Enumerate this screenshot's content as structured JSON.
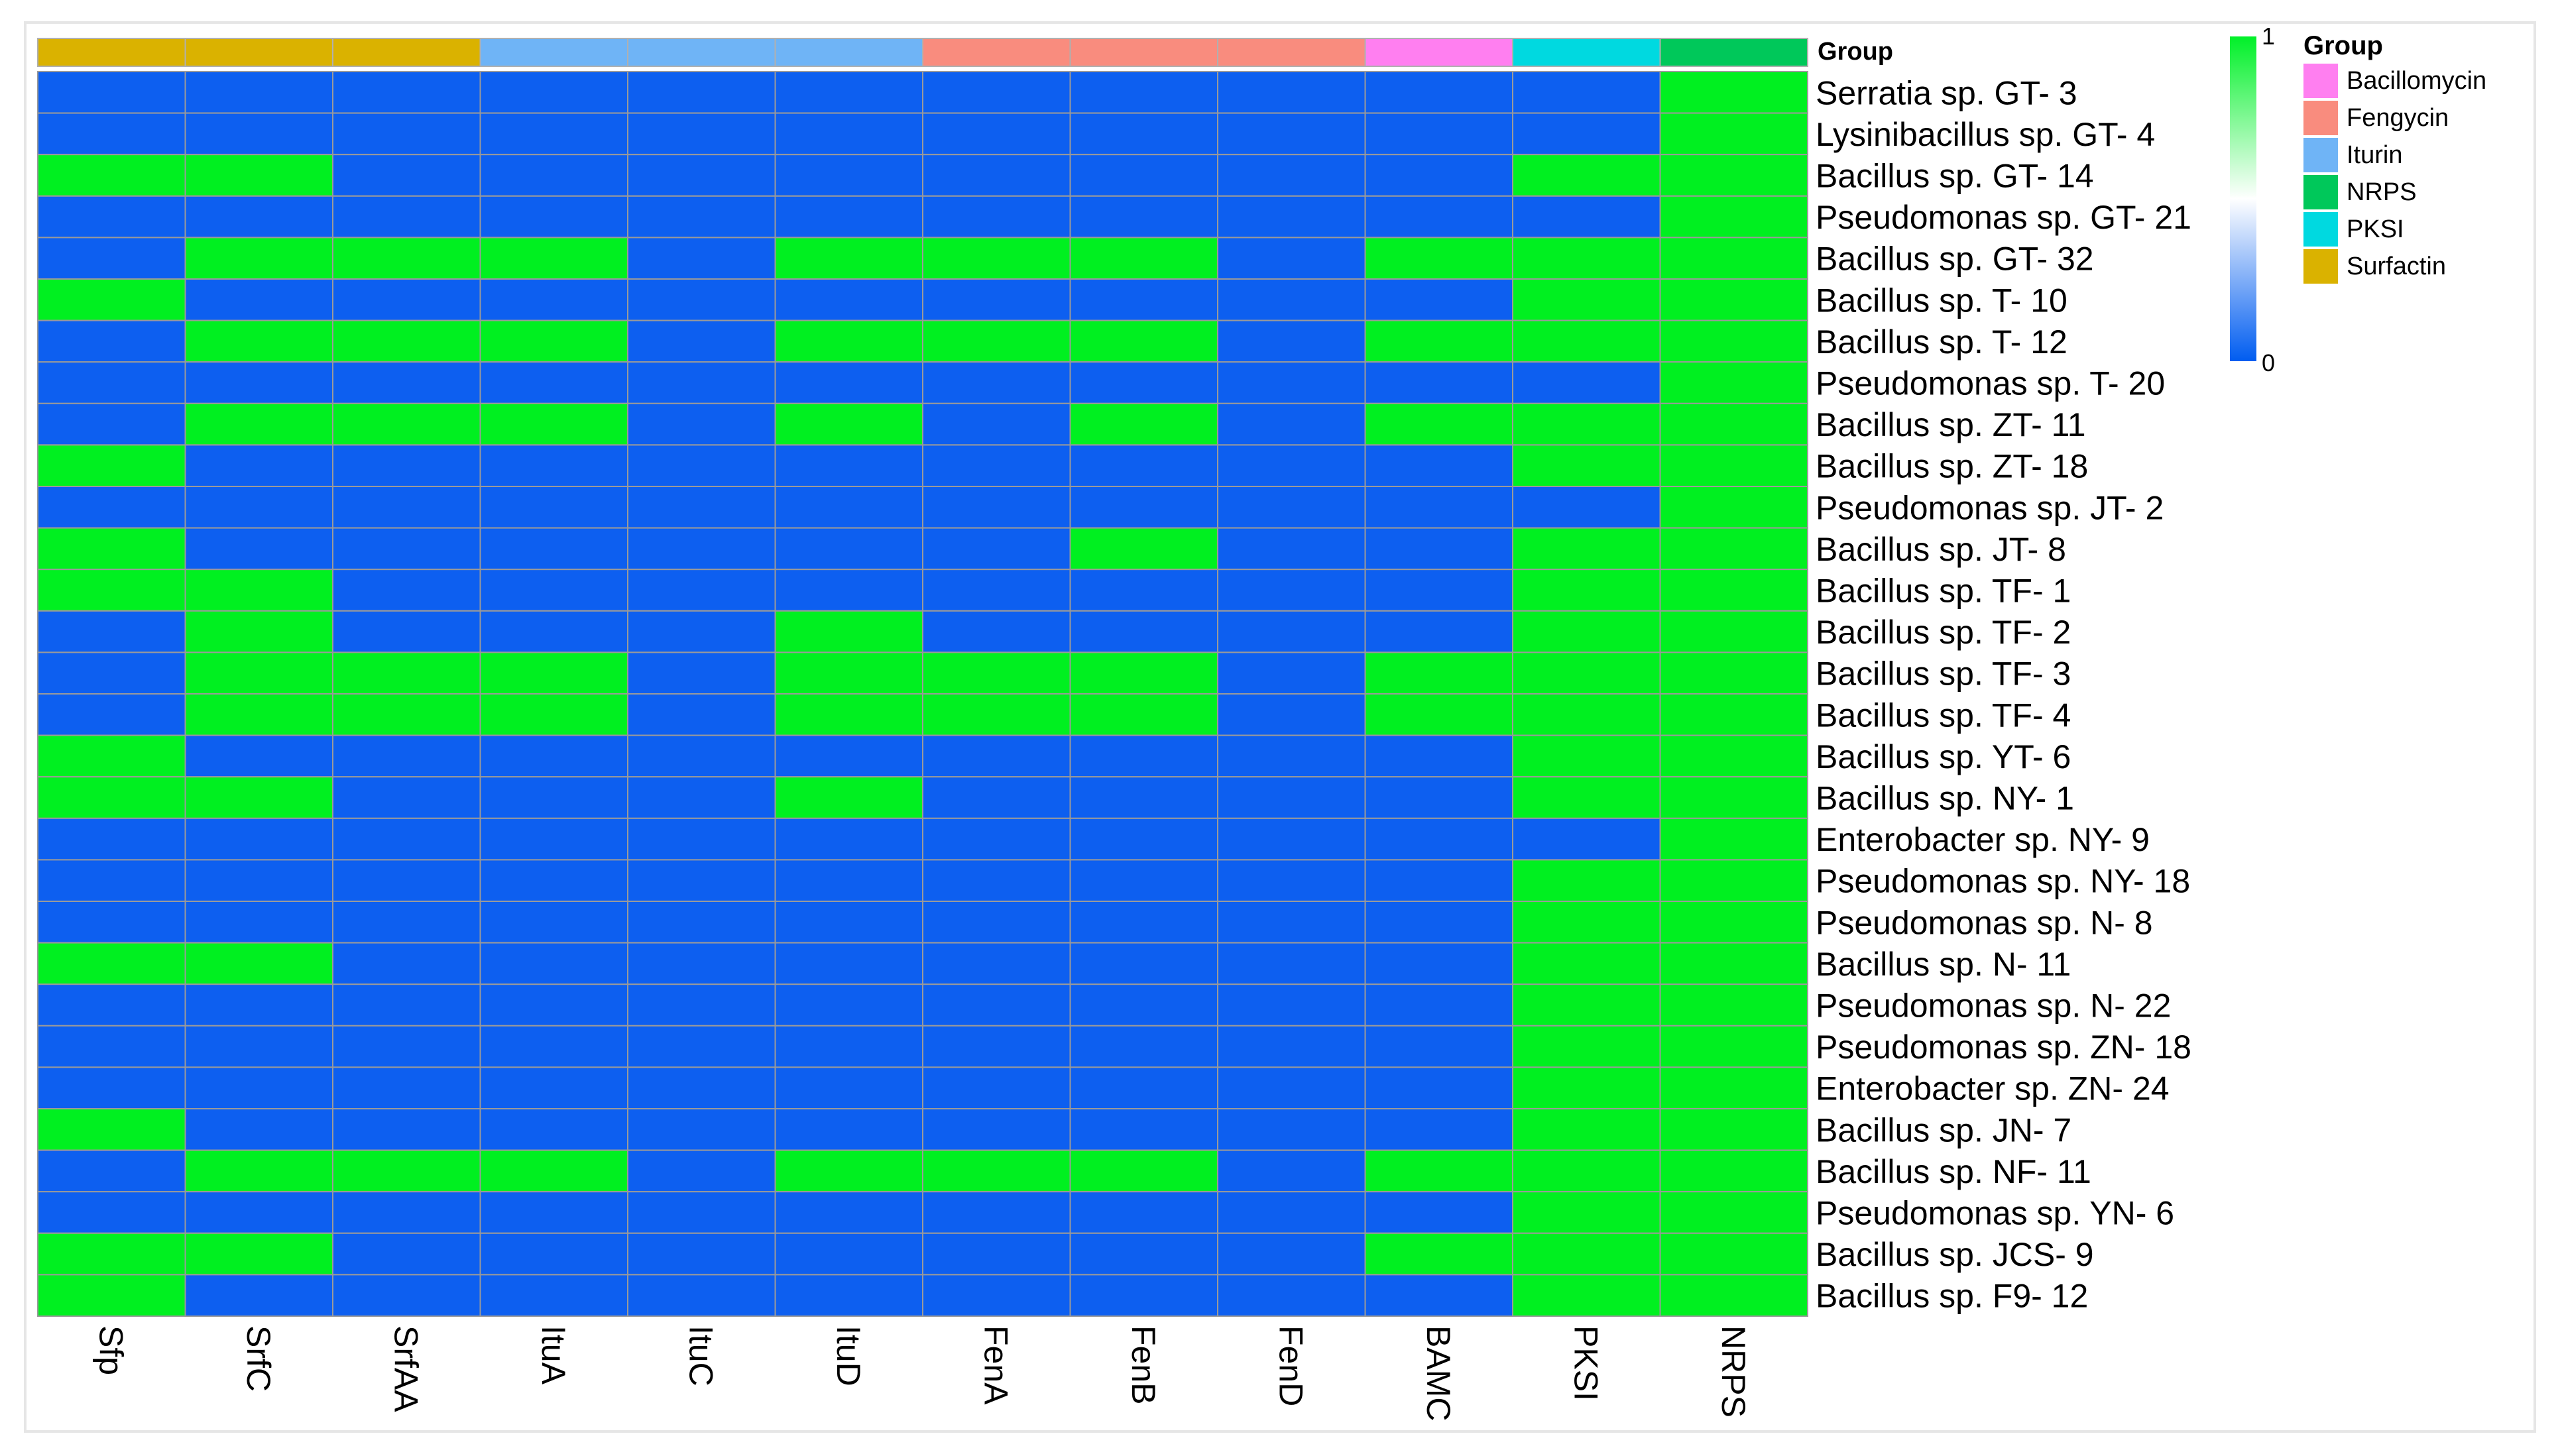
{
  "chart_data": {
    "type": "heatmap",
    "columns": [
      "Sfp",
      "SrfC",
      "SrfAA",
      "ItuA",
      "ItuC",
      "ItuD",
      "FenA",
      "FenB",
      "FenD",
      "BAMC",
      "PKSI",
      "NRPS"
    ],
    "column_groups": [
      "Surfactin",
      "Surfactin",
      "Surfactin",
      "Iturin",
      "Iturin",
      "Iturin",
      "Fengycin",
      "Fengycin",
      "Fengycin",
      "Bacillomycin",
      "PKSI",
      "NRPS"
    ],
    "rows": [
      "Serratia sp. GT- 3",
      "Lysinibacillus sp. GT- 4",
      "Bacillus sp. GT- 14",
      "Pseudomonas sp. GT- 21",
      "Bacillus sp. GT- 32",
      "Bacillus sp. T- 10",
      "Bacillus sp. T- 12",
      "Pseudomonas sp. T- 20",
      "Bacillus sp. ZT- 11",
      "Bacillus sp. ZT- 18",
      "Pseudomonas sp. JT- 2",
      "Bacillus sp. JT- 8",
      "Bacillus sp. TF- 1",
      "Bacillus sp. TF- 2",
      "Bacillus sp. TF- 3",
      "Bacillus sp. TF- 4",
      "Bacillus sp. YT- 6",
      "Bacillus sp. NY- 1",
      "Enterobacter sp. NY- 9",
      "Pseudomonas sp. NY- 18",
      "Pseudomonas sp. N- 8",
      "Bacillus sp. N- 11",
      "Pseudomonas sp. N- 22",
      "Pseudomonas sp. ZN- 18",
      "Enterobacter sp. ZN- 24",
      "Bacillus sp. JN- 7",
      "Bacillus sp. NF- 11",
      "Pseudomonas sp. YN- 6",
      "Bacillus sp. JCS- 9",
      "Bacillus sp. F9- 12"
    ],
    "values": [
      [
        0,
        0,
        0,
        0,
        0,
        0,
        0,
        0,
        0,
        0,
        0,
        1
      ],
      [
        0,
        0,
        0,
        0,
        0,
        0,
        0,
        0,
        0,
        0,
        0,
        1
      ],
      [
        1,
        1,
        0,
        0,
        0,
        0,
        0,
        0,
        0,
        0,
        1,
        1
      ],
      [
        0,
        0,
        0,
        0,
        0,
        0,
        0,
        0,
        0,
        0,
        0,
        1
      ],
      [
        0,
        1,
        1,
        1,
        0,
        1,
        1,
        1,
        0,
        1,
        1,
        1
      ],
      [
        1,
        0,
        0,
        0,
        0,
        0,
        0,
        0,
        0,
        0,
        1,
        1
      ],
      [
        0,
        1,
        1,
        1,
        0,
        1,
        1,
        1,
        0,
        1,
        1,
        1
      ],
      [
        0,
        0,
        0,
        0,
        0,
        0,
        0,
        0,
        0,
        0,
        0,
        1
      ],
      [
        0,
        1,
        1,
        1,
        0,
        1,
        0,
        1,
        0,
        1,
        1,
        1
      ],
      [
        1,
        0,
        0,
        0,
        0,
        0,
        0,
        0,
        0,
        0,
        1,
        1
      ],
      [
        0,
        0,
        0,
        0,
        0,
        0,
        0,
        0,
        0,
        0,
        0,
        1
      ],
      [
        1,
        0,
        0,
        0,
        0,
        0,
        0,
        1,
        0,
        0,
        1,
        1
      ],
      [
        1,
        1,
        0,
        0,
        0,
        0,
        0,
        0,
        0,
        0,
        1,
        1
      ],
      [
        0,
        1,
        0,
        0,
        0,
        1,
        0,
        0,
        0,
        0,
        1,
        1
      ],
      [
        0,
        1,
        1,
        1,
        0,
        1,
        1,
        1,
        0,
        1,
        1,
        1
      ],
      [
        0,
        1,
        1,
        1,
        0,
        1,
        1,
        1,
        0,
        1,
        1,
        1
      ],
      [
        1,
        0,
        0,
        0,
        0,
        0,
        0,
        0,
        0,
        0,
        1,
        1
      ],
      [
        1,
        1,
        0,
        0,
        0,
        1,
        0,
        0,
        0,
        0,
        1,
        1
      ],
      [
        0,
        0,
        0,
        0,
        0,
        0,
        0,
        0,
        0,
        0,
        0,
        1
      ],
      [
        0,
        0,
        0,
        0,
        0,
        0,
        0,
        0,
        0,
        0,
        1,
        1
      ],
      [
        0,
        0,
        0,
        0,
        0,
        0,
        0,
        0,
        0,
        0,
        1,
        1
      ],
      [
        1,
        1,
        0,
        0,
        0,
        0,
        0,
        0,
        0,
        0,
        1,
        1
      ],
      [
        0,
        0,
        0,
        0,
        0,
        0,
        0,
        0,
        0,
        0,
        1,
        1
      ],
      [
        0,
        0,
        0,
        0,
        0,
        0,
        0,
        0,
        0,
        0,
        1,
        1
      ],
      [
        0,
        0,
        0,
        0,
        0,
        0,
        0,
        0,
        0,
        0,
        1,
        1
      ],
      [
        1,
        0,
        0,
        0,
        0,
        0,
        0,
        0,
        0,
        0,
        1,
        1
      ],
      [
        0,
        1,
        1,
        1,
        0,
        1,
        1,
        1,
        0,
        1,
        1,
        1
      ],
      [
        0,
        0,
        0,
        0,
        0,
        0,
        0,
        0,
        0,
        0,
        1,
        1
      ],
      [
        1,
        1,
        0,
        0,
        0,
        0,
        0,
        0,
        0,
        1,
        1,
        1
      ],
      [
        1,
        0,
        0,
        0,
        0,
        0,
        0,
        0,
        0,
        0,
        1,
        1
      ]
    ],
    "group_header": "Group",
    "legend": {
      "title": "Group",
      "items": [
        {
          "name": "Bacillomycin",
          "color": "#ff7ff0"
        },
        {
          "name": "Fengycin",
          "color": "#f98c7e"
        },
        {
          "name": "Iturin",
          "color": "#6fb4f6"
        },
        {
          "name": "NRPS",
          "color": "#00c85a"
        },
        {
          "name": "PKSI",
          "color": "#00d9e0"
        },
        {
          "name": "Surfactin",
          "color": "#dab200"
        }
      ],
      "placement": "right"
    },
    "colorbar": {
      "min": 0,
      "max": 1,
      "min_label": "0",
      "max_label": "1",
      "low_color": "#005cf0",
      "high_color": "#00f028"
    },
    "cell_colors": {
      "0": "#0d5ff0",
      "1": "#00f020"
    },
    "grid": true
  }
}
